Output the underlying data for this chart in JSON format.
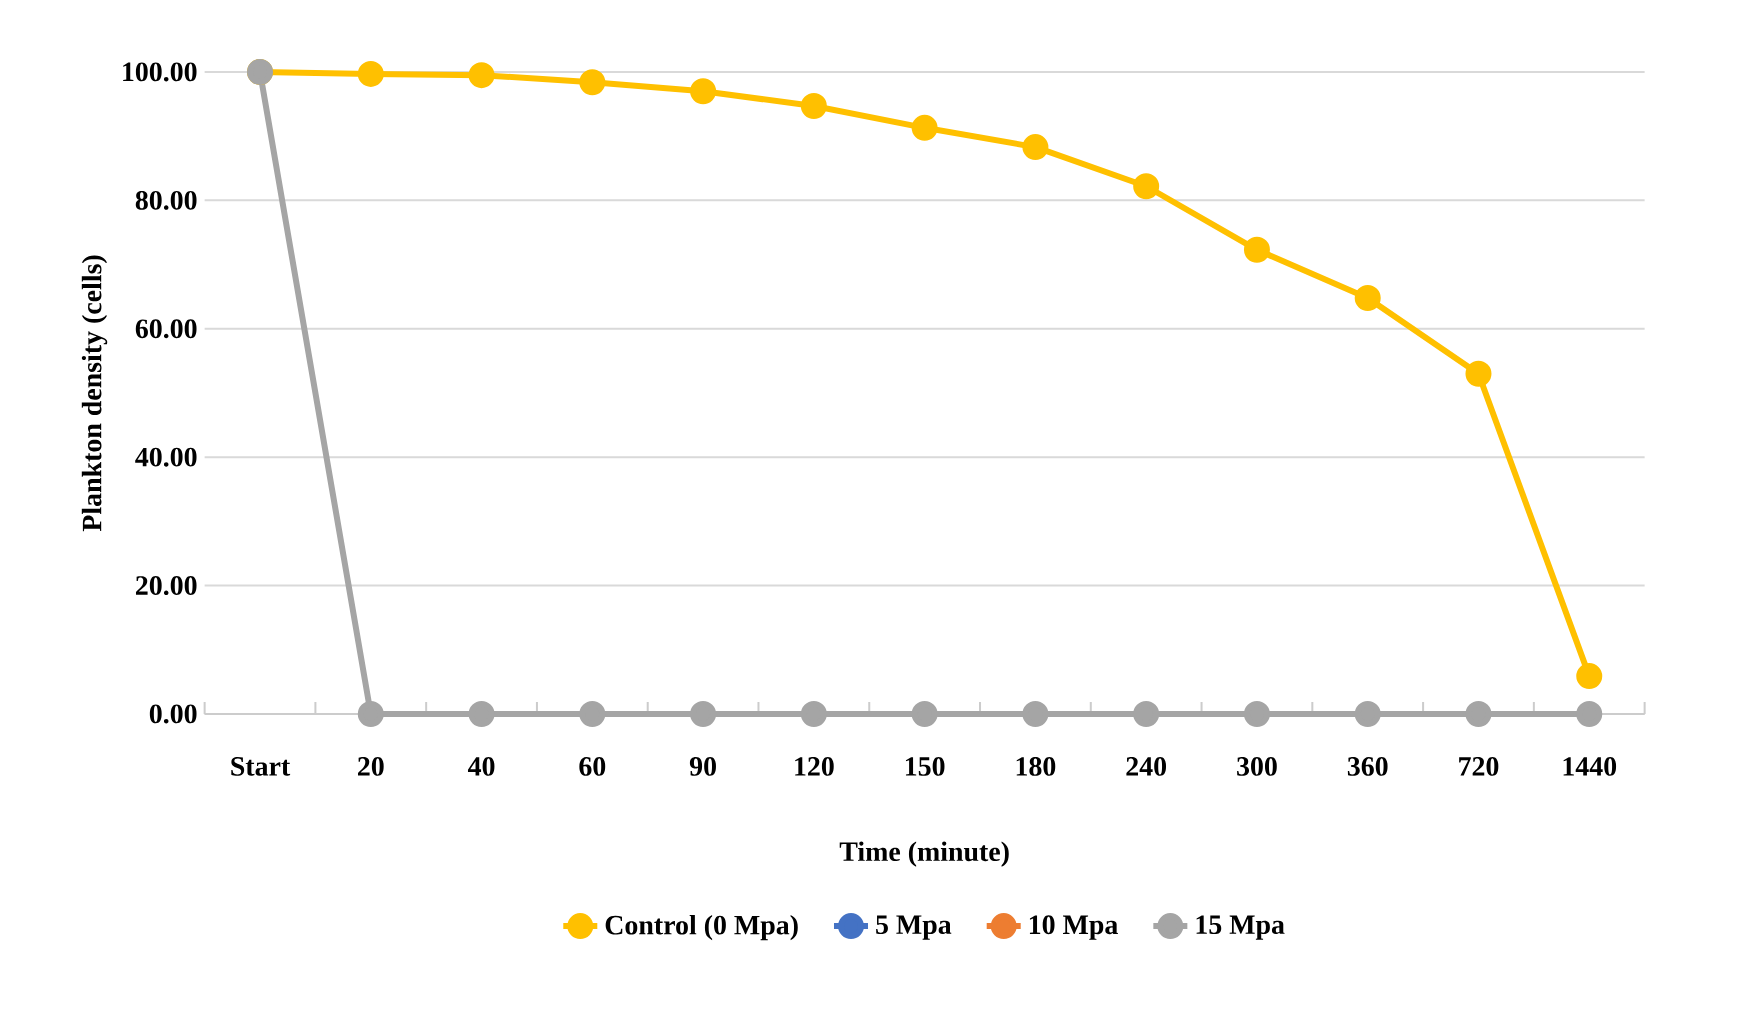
{
  "chart_data": {
    "type": "line",
    "xlabel": "Time (minute)",
    "ylabel": "Plankton density (cells)",
    "categories": [
      "Start",
      "20",
      "40",
      "60",
      "90",
      "120",
      "150",
      "180",
      "240",
      "300",
      "360",
      "720",
      "1440"
    ],
    "series": [
      {
        "name": "Control (0 Mpa)",
        "color": "#ffc000",
        "values": [
          100,
          99.7,
          99.5,
          98.4,
          97,
          94.7,
          91.3,
          88.3,
          82.2,
          72.3,
          64.8,
          53,
          5.9
        ]
      },
      {
        "name": "5 Mpa",
        "color": "#4472c4",
        "values": [
          null,
          null,
          null,
          null,
          null,
          null,
          null,
          null,
          null,
          null,
          null,
          null,
          null
        ]
      },
      {
        "name": "10 Mpa",
        "color": "#ed7d31",
        "values": [
          null,
          null,
          null,
          null,
          null,
          null,
          null,
          null,
          null,
          null,
          null,
          null,
          null
        ]
      },
      {
        "name": "15 Mpa",
        "color": "#a5a5a5",
        "values": [
          100,
          0,
          0,
          0,
          0,
          0,
          0,
          0,
          0,
          0,
          0,
          0,
          0
        ]
      }
    ],
    "ylim": [
      0,
      100
    ],
    "yticks": [
      {
        "value": 0,
        "label": "0.00"
      },
      {
        "value": 20,
        "label": "20.00"
      },
      {
        "value": 40,
        "label": "40.00"
      },
      {
        "value": 60,
        "label": "60.00"
      },
      {
        "value": 80,
        "label": "80.00"
      },
      {
        "value": 100,
        "label": "100.00"
      }
    ],
    "grid": "y",
    "legend": "bottom",
    "marker": "circle",
    "line_style": "solid"
  }
}
